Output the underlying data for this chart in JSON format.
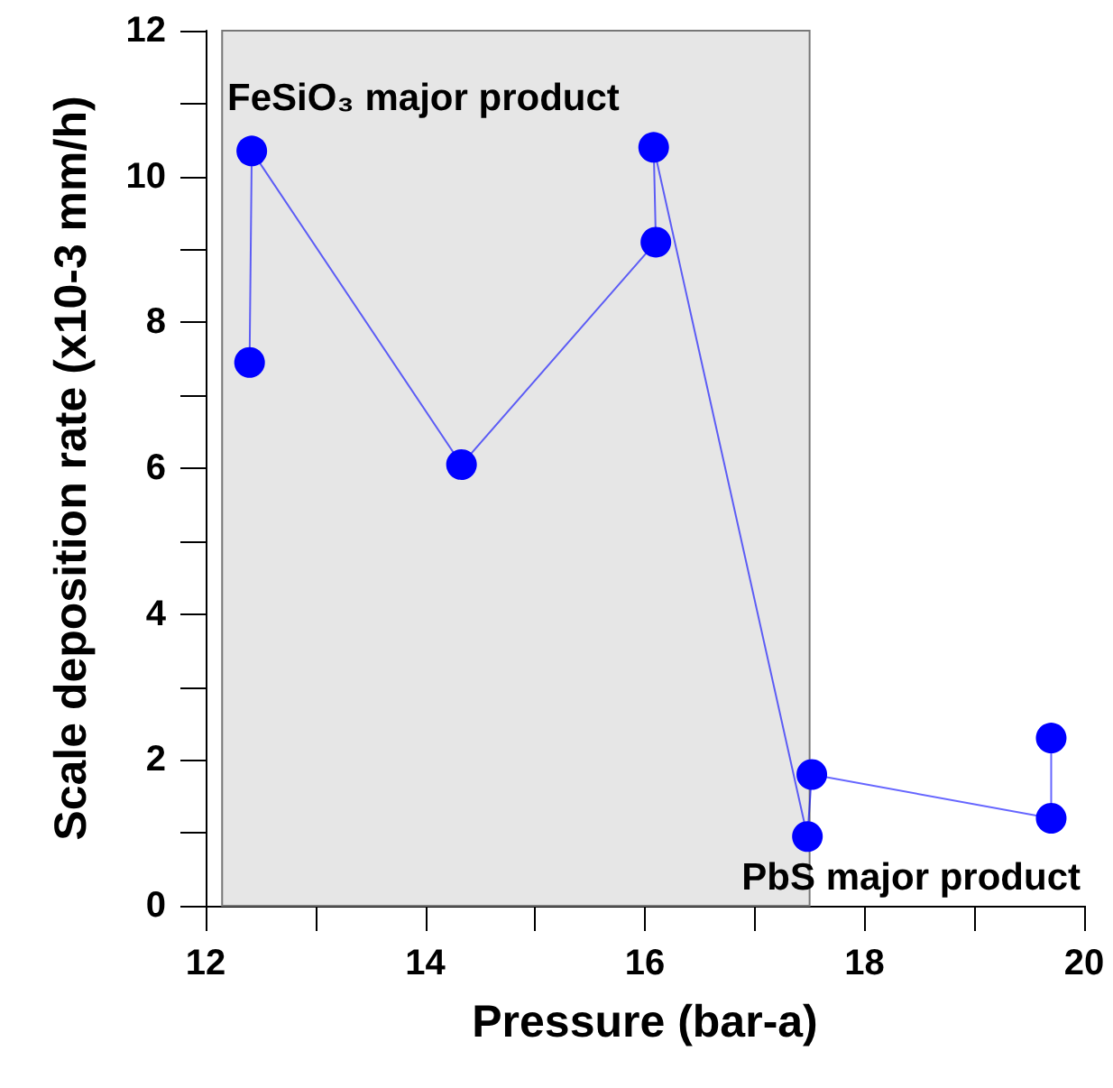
{
  "chart_data": {
    "type": "line",
    "xlabel": "Pressure (bar-a)",
    "ylabel": "Scale deposition rate (x10-3 mm/h)",
    "x": [
      12.4,
      12.42,
      14.33,
      16.1,
      16.08,
      17.48,
      17.52,
      19.7,
      19.7
    ],
    "series": [
      {
        "color": "#0000ff",
        "values": [
          7.45,
          10.35,
          6.05,
          9.1,
          10.4,
          0.95,
          1.8,
          1.2,
          2.3
        ]
      }
    ],
    "xlim": [
      12,
      20
    ],
    "xticks": [
      12,
      {
        "value": 13,
        "label": null
      },
      14,
      {
        "value": 15,
        "label": null
      },
      16,
      {
        "value": 17,
        "label": null
      },
      18,
      {
        "value": 19,
        "label": null
      },
      20
    ],
    "ylim": [
      0,
      12
    ],
    "yticks": [
      0,
      {
        "value": 1,
        "label": null
      },
      2,
      {
        "value": 3,
        "label": null
      },
      4,
      {
        "value": 5,
        "label": null
      },
      6,
      {
        "value": 7,
        "label": null
      },
      8,
      {
        "value": 9,
        "label": null
      },
      10,
      {
        "value": 11,
        "label": null
      },
      12
    ],
    "bands": [
      {
        "axis": "x",
        "from": 12.15,
        "to": 17.5,
        "color": "#e6e6e6"
      }
    ],
    "annotations": [
      "FeSiO₃ major product",
      "PbS major product"
    ],
    "grid": false,
    "marker": "circle",
    "line_style": "solid"
  }
}
